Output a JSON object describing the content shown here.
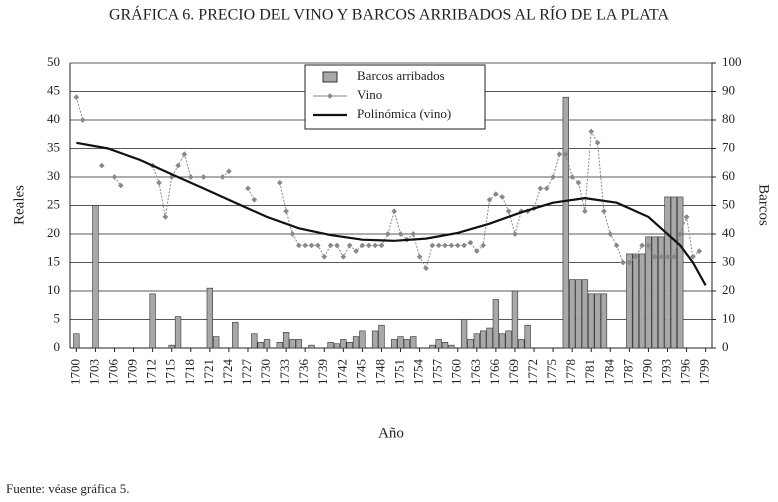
{
  "chart_data": {
    "type": "bar",
    "title": "GRÁFICA 6. PRECIO DEL VINO Y BARCOS ARRIBADOS AL RÍO DE LA PLATA",
    "x_label": "Año",
    "y_label": "Reales",
    "y2_label": "Barcos",
    "note": "Fuente: véase gráfica 5.",
    "x": [
      1700,
      1701,
      1702,
      1703,
      1704,
      1705,
      1706,
      1707,
      1708,
      1709,
      1710,
      1711,
      1712,
      1713,
      1714,
      1715,
      1716,
      1717,
      1718,
      1719,
      1720,
      1721,
      1722,
      1723,
      1724,
      1725,
      1726,
      1727,
      1728,
      1729,
      1730,
      1731,
      1732,
      1733,
      1734,
      1735,
      1736,
      1737,
      1738,
      1739,
      1740,
      1741,
      1742,
      1743,
      1744,
      1745,
      1746,
      1747,
      1748,
      1749,
      1750,
      1751,
      1752,
      1753,
      1754,
      1755,
      1756,
      1757,
      1758,
      1759,
      1760,
      1761,
      1762,
      1763,
      1764,
      1765,
      1766,
      1767,
      1768,
      1769,
      1770,
      1771,
      1772,
      1773,
      1774,
      1775,
      1776,
      1777,
      1778,
      1779,
      1780,
      1781,
      1782,
      1783,
      1784,
      1785,
      1786,
      1787,
      1788,
      1789,
      1790,
      1791,
      1792,
      1793,
      1794,
      1795,
      1796,
      1797,
      1798,
      1799
    ],
    "xlim": [
      1699,
      1800
    ],
    "xticks": [
      1700,
      1703,
      1706,
      1709,
      1712,
      1715,
      1718,
      1721,
      1724,
      1727,
      1730,
      1733,
      1736,
      1739,
      1742,
      1745,
      1748,
      1751,
      1754,
      1757,
      1760,
      1763,
      1766,
      1769,
      1772,
      1775,
      1778,
      1781,
      1784,
      1787,
      1790,
      1793,
      1796,
      1799
    ],
    "ylim": [
      0,
      50
    ],
    "yticks": [
      0,
      5,
      10,
      15,
      20,
      25,
      30,
      35,
      40,
      45,
      50
    ],
    "y2lim": [
      0,
      100
    ],
    "y2ticks": [
      0,
      10,
      20,
      30,
      40,
      50,
      60,
      70,
      80,
      90,
      100
    ],
    "grid": true,
    "legend": "top",
    "series": [
      {
        "name": "Barcos arribados",
        "type": "bar",
        "axis": "y2",
        "color": "#a8a8a8",
        "values": [
          5,
          0,
          0,
          50,
          0,
          0,
          0,
          0,
          0,
          0,
          0,
          0,
          19,
          0,
          0,
          1,
          11,
          0,
          0,
          0,
          0,
          21,
          4,
          0,
          0,
          9,
          0,
          0,
          5,
          2,
          3,
          0,
          2,
          5.5,
          3,
          3,
          0,
          1,
          0,
          0,
          2,
          1.5,
          3,
          2,
          4,
          6,
          0,
          6,
          8,
          0,
          3,
          4,
          3,
          4,
          0,
          0,
          1,
          3,
          2,
          1,
          0,
          10,
          3,
          5,
          6,
          7,
          17,
          5,
          6,
          20,
          3,
          8,
          0,
          0,
          0,
          0,
          0,
          88,
          24,
          24,
          24,
          19,
          19,
          19,
          0,
          0,
          0,
          33,
          33,
          33,
          39,
          39,
          39,
          53,
          53,
          53,
          0,
          0,
          0,
          0
        ]
      },
      {
        "name": "Vino",
        "type": "line",
        "color": "#888888",
        "values": [
          44,
          40,
          null,
          null,
          32,
          null,
          30,
          28.5,
          null,
          null,
          null,
          null,
          32,
          29,
          23,
          30,
          32,
          34,
          30,
          null,
          30,
          null,
          null,
          30,
          31,
          null,
          null,
          28,
          26,
          null,
          null,
          null,
          29,
          24,
          20,
          18,
          18,
          18,
          18,
          16,
          18,
          18,
          16,
          18,
          17,
          18,
          18,
          18,
          18,
          20,
          24,
          20,
          19,
          20,
          16,
          14,
          18,
          18,
          18,
          18,
          18,
          18,
          18.5,
          17,
          18,
          26,
          27,
          26.5,
          24,
          20,
          24,
          24,
          24.5,
          28,
          28,
          30,
          34,
          34,
          30,
          29,
          24,
          38,
          36,
          24,
          20,
          18,
          15,
          15,
          16,
          18,
          18,
          16,
          16,
          16,
          16,
          20,
          23,
          16,
          17,
          null
        ]
      },
      {
        "name": "Polinómica (vino)",
        "type": "line",
        "color": "#111111",
        "x": [
          1700,
          1705,
          1710,
          1715,
          1720,
          1725,
          1730,
          1735,
          1740,
          1745,
          1750,
          1755,
          1760,
          1765,
          1770,
          1775,
          1780,
          1785,
          1790,
          1792,
          1795,
          1797,
          1799
        ],
        "values": [
          36,
          35,
          33,
          30.5,
          28,
          25.5,
          23,
          21,
          19.8,
          19,
          18.8,
          19.2,
          20.2,
          21.8,
          23.8,
          25.5,
          26.3,
          25.5,
          23,
          21,
          18,
          15,
          11
        ]
      }
    ]
  }
}
